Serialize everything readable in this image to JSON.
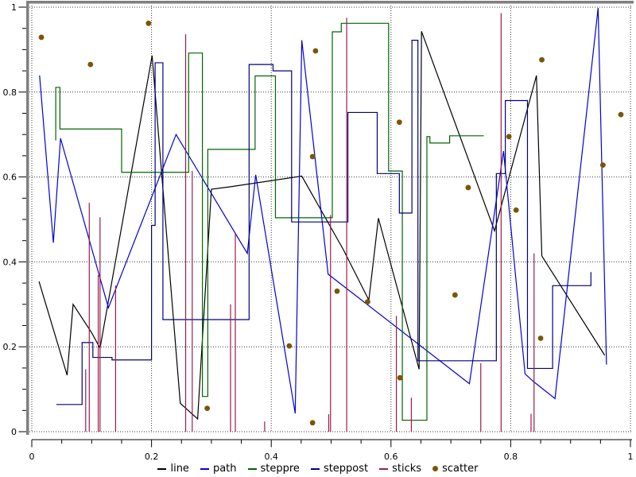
{
  "figure": {
    "background": "#ffffff",
    "border_color": "#7f7f7f",
    "grid_color": "#3c3c3c",
    "axis_color": "#000000",
    "x_axis": {
      "labels": [
        "0",
        "0.2",
        "0.4",
        "0.6",
        "0.8",
        "1"
      ],
      "values": [
        0,
        0.2,
        0.4,
        0.6,
        0.8,
        1
      ],
      "minor_step": 0.05,
      "range": [
        0,
        1
      ]
    },
    "y_axis": {
      "labels": [
        "0",
        "0.2",
        "0.4",
        "0.6",
        "0.8",
        "1"
      ],
      "values": [
        0,
        0.2,
        0.4,
        0.6,
        0.8,
        1
      ],
      "minor_step": 0.05,
      "range": [
        0,
        1
      ]
    }
  },
  "chart_data": {
    "type": "line",
    "title": "",
    "xlabel": "",
    "ylabel": "",
    "xlim": [
      0,
      1
    ],
    "ylim": [
      0,
      1
    ],
    "grid": "dotted",
    "legend_position": "bottom",
    "series": [
      {
        "name": "line",
        "style": "line",
        "color": "#000000",
        "points": [
          [
            0.012,
            0.354
          ],
          [
            0.059,
            0.133
          ],
          [
            0.069,
            0.3
          ],
          [
            0.1,
            0.233
          ],
          [
            0.114,
            0.197
          ],
          [
            0.201,
            0.886
          ],
          [
            0.248,
            0.067
          ],
          [
            0.277,
            0.03
          ],
          [
            0.3,
            0.571
          ],
          [
            0.332,
            0.577
          ],
          [
            0.451,
            0.602
          ],
          [
            0.52,
            0.43
          ],
          [
            0.563,
            0.31
          ],
          [
            0.579,
            0.503
          ],
          [
            0.647,
            0.147
          ],
          [
            0.651,
            0.943
          ],
          [
            0.773,
            0.473
          ],
          [
            0.843,
            0.839
          ],
          [
            0.852,
            0.414
          ],
          [
            0.957,
            0.18
          ]
        ]
      },
      {
        "name": "path",
        "style": "path",
        "color": "#0000dd",
        "points": [
          [
            0.013,
            0.839
          ],
          [
            0.036,
            0.445
          ],
          [
            0.048,
            0.691
          ],
          [
            0.128,
            0.292
          ],
          [
            0.241,
            0.7
          ],
          [
            0.36,
            0.42
          ],
          [
            0.374,
            0.605
          ],
          [
            0.44,
            0.043
          ],
          [
            0.451,
            0.922
          ],
          [
            0.495,
            0.371
          ],
          [
            0.731,
            0.113
          ],
          [
            0.788,
            0.661
          ],
          [
            0.824,
            0.136
          ],
          [
            0.839,
            0.117
          ],
          [
            0.874,
            0.078
          ],
          [
            0.946,
            0.998
          ],
          [
            0.96,
            0.158
          ]
        ]
      },
      {
        "name": "steppre",
        "style": "steppre",
        "color": "#006400",
        "points": [
          [
            0.04,
            0.686
          ],
          [
            0.047,
            0.811
          ],
          [
            0.15,
            0.713
          ],
          [
            0.262,
            0.611
          ],
          [
            0.285,
            0.892
          ],
          [
            0.294,
            0.083
          ],
          [
            0.373,
            0.665
          ],
          [
            0.407,
            0.838
          ],
          [
            0.502,
            0.504
          ],
          [
            0.517,
            0.942
          ],
          [
            0.596,
            0.962
          ],
          [
            0.619,
            0.614
          ],
          [
            0.66,
            0.027
          ],
          [
            0.665,
            0.695
          ],
          [
            0.698,
            0.68
          ],
          [
            0.755,
            0.697
          ]
        ]
      },
      {
        "name": "steppost",
        "style": "steppost",
        "color": "#000080",
        "points": [
          [
            0.041,
            0.064
          ],
          [
            0.084,
            0.21
          ],
          [
            0.102,
            0.175
          ],
          [
            0.134,
            0.169
          ],
          [
            0.2,
            0.486
          ],
          [
            0.206,
            0.869
          ],
          [
            0.219,
            0.264
          ],
          [
            0.363,
            0.865
          ],
          [
            0.403,
            0.85
          ],
          [
            0.434,
            0.494
          ],
          [
            0.528,
            0.752
          ],
          [
            0.577,
            0.608
          ],
          [
            0.614,
            0.515
          ],
          [
            0.635,
            0.922
          ],
          [
            0.645,
            0.167
          ],
          [
            0.776,
            0.608
          ],
          [
            0.791,
            0.78
          ],
          [
            0.828,
            0.149
          ],
          [
            0.87,
            0.344
          ],
          [
            0.934,
            0.376
          ]
        ]
      },
      {
        "name": "sticks",
        "style": "sticks",
        "color": "#9b1b4d",
        "points": [
          [
            0.09,
            0.147
          ],
          [
            0.096,
            0.539
          ],
          [
            0.111,
            0.369
          ],
          [
            0.114,
            0.505
          ],
          [
            0.14,
            0.344
          ],
          [
            0.257,
            0.936
          ],
          [
            0.268,
            0.614
          ],
          [
            0.332,
            0.3
          ],
          [
            0.34,
            0.467
          ],
          [
            0.389,
            0.024
          ],
          [
            0.496,
            0.041
          ],
          [
            0.499,
            0.51
          ],
          [
            0.526,
            0.975
          ],
          [
            0.609,
            0.273
          ],
          [
            0.634,
            0.08
          ],
          [
            0.75,
            0.161
          ],
          [
            0.784,
            0.986
          ],
          [
            0.834,
            0.042
          ],
          [
            0.839,
            0.42
          ]
        ]
      },
      {
        "name": "scatter",
        "style": "scatter",
        "color": "#7a5505",
        "points": [
          [
            0.016,
            0.929
          ],
          [
            0.098,
            0.865
          ],
          [
            0.195,
            0.962
          ],
          [
            0.293,
            0.055
          ],
          [
            0.43,
            0.202
          ],
          [
            0.469,
            0.021
          ],
          [
            0.469,
            0.648
          ],
          [
            0.474,
            0.897
          ],
          [
            0.51,
            0.331
          ],
          [
            0.561,
            0.306
          ],
          [
            0.614,
            0.729
          ],
          [
            0.615,
            0.127
          ],
          [
            0.707,
            0.322
          ],
          [
            0.729,
            0.575
          ],
          [
            0.797,
            0.695
          ],
          [
            0.809,
            0.522
          ],
          [
            0.85,
            0.22
          ],
          [
            0.852,
            0.876
          ],
          [
            0.954,
            0.628
          ],
          [
            0.984,
            0.747
          ]
        ]
      }
    ],
    "legend_entries": [
      "line",
      "path",
      "steppre",
      "steppost",
      "sticks",
      "scatter"
    ]
  }
}
